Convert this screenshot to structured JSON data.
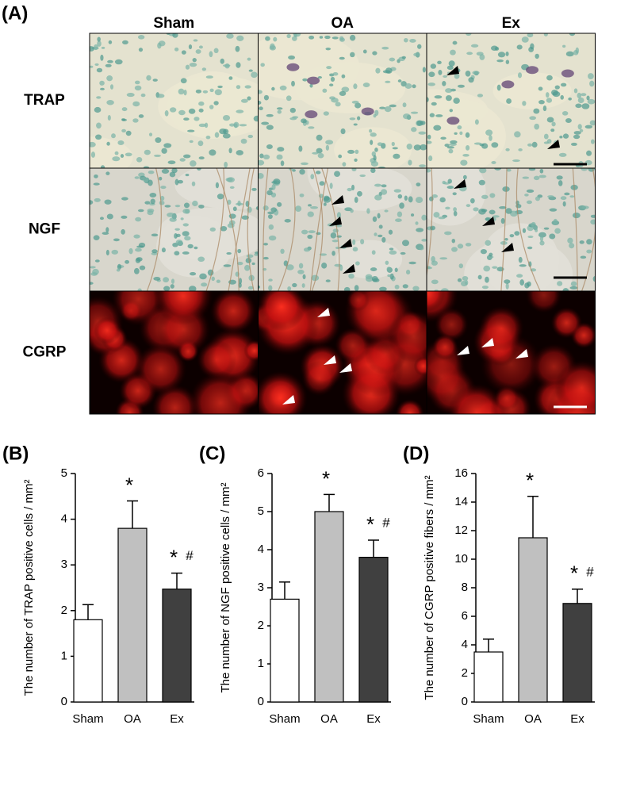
{
  "figure_a": {
    "panel_label": "(A)",
    "columns": [
      "Sham",
      "OA",
      "Ex"
    ],
    "rows": [
      "TRAP",
      "NGF",
      "CGRP"
    ]
  },
  "chart_data": [
    {
      "type": "bar",
      "panel_label": "(B)",
      "ylabel": "The number of TRAP positive cells / mm²",
      "categories": [
        "Sham",
        "OA",
        "Ex"
      ],
      "values": [
        1.8,
        3.8,
        2.47
      ],
      "errors": [
        0.33,
        0.6,
        0.35
      ],
      "colors": [
        "#ffffff",
        "#c0c0c0",
        "#404040"
      ],
      "ylim": [
        0,
        5
      ],
      "yticks": [
        0,
        1,
        2,
        3,
        4,
        5
      ],
      "annotations": [
        {
          "category": "OA",
          "text": "*"
        },
        {
          "category": "Ex",
          "text": "*"
        },
        {
          "category": "Ex",
          "text": "#"
        }
      ]
    },
    {
      "type": "bar",
      "panel_label": "(C)",
      "ylabel": "The number of NGF positive cells / mm²",
      "categories": [
        "Sham",
        "OA",
        "Ex"
      ],
      "values": [
        2.7,
        5.0,
        3.8
      ],
      "errors": [
        0.45,
        0.45,
        0.45
      ],
      "colors": [
        "#ffffff",
        "#c0c0c0",
        "#404040"
      ],
      "ylim": [
        0,
        6
      ],
      "yticks": [
        0,
        1,
        2,
        3,
        4,
        5,
        6
      ],
      "annotations": [
        {
          "category": "OA",
          "text": "*"
        },
        {
          "category": "Ex",
          "text": "*"
        },
        {
          "category": "Ex",
          "text": "#"
        }
      ]
    },
    {
      "type": "bar",
      "panel_label": "(D)",
      "ylabel": "The number of CGRP positive fibers / mm²",
      "categories": [
        "Sham",
        "OA",
        "Ex"
      ],
      "values": [
        3.5,
        11.5,
        6.9
      ],
      "errors": [
        0.9,
        2.9,
        1.0
      ],
      "colors": [
        "#ffffff",
        "#c0c0c0",
        "#404040"
      ],
      "ylim": [
        0,
        16
      ],
      "yticks": [
        0,
        2,
        4,
        6,
        8,
        10,
        12,
        14,
        16
      ],
      "annotations": [
        {
          "category": "OA",
          "text": "*"
        },
        {
          "category": "Ex",
          "text": "*"
        },
        {
          "category": "Ex",
          "text": "#"
        }
      ]
    }
  ]
}
